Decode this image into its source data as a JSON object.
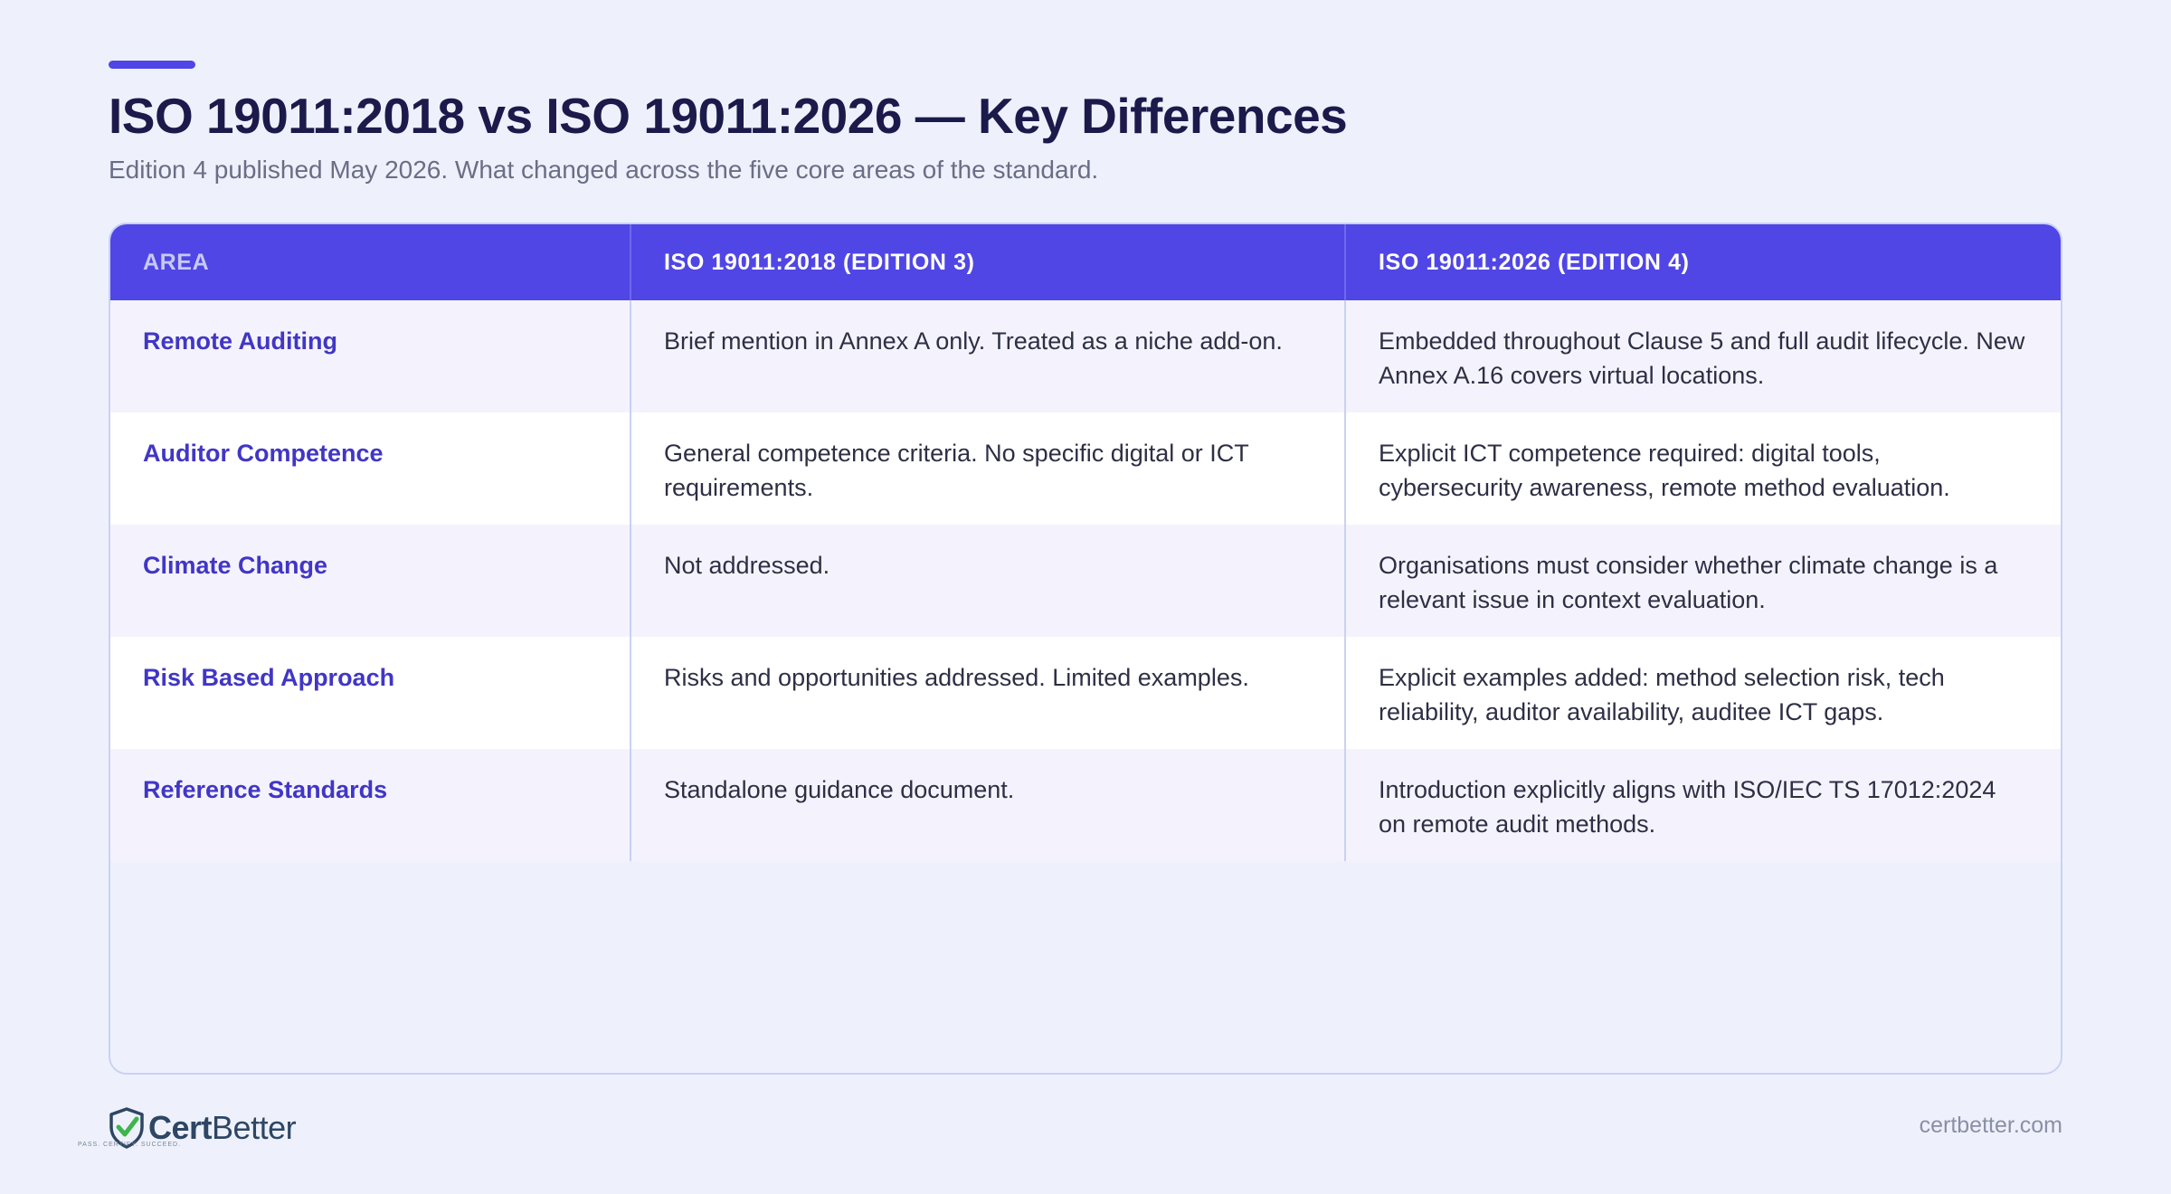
{
  "header": {
    "title": "ISO 19011:2018 vs ISO 19011:2026 — Key Differences",
    "subtitle": "Edition 4 published May 2026. What changed across the five core areas of the standard."
  },
  "table": {
    "columns": [
      "AREA",
      "ISO 19011:2018 (EDITION 3)",
      "ISO 19011:2026 (EDITION 4)"
    ],
    "rows": [
      {
        "area": "Remote Auditing",
        "edition3": "Brief mention in Annex A only. Treated as a niche add-on.",
        "edition4": "Embedded throughout Clause 5 and full audit lifecycle. New Annex A.16 covers virtual locations."
      },
      {
        "area": "Auditor Competence",
        "edition3": "General competence criteria. No specific digital or ICT requirements.",
        "edition4": "Explicit ICT competence required: digital tools, cybersecurity awareness, remote method evaluation."
      },
      {
        "area": "Climate Change",
        "edition3": "Not addressed.",
        "edition4": "Organisations must consider whether climate change is a relevant issue in context evaluation."
      },
      {
        "area": "Risk Based Approach",
        "edition3": "Risks and opportunities addressed. Limited examples.",
        "edition4": "Explicit examples added: method selection risk, tech reliability, auditor availability, auditee ICT gaps."
      },
      {
        "area": "Reference Standards",
        "edition3": "Standalone guidance document.",
        "edition4": "Introduction explicitly aligns with ISO/IEC TS 17012:2024 on remote audit methods."
      }
    ]
  },
  "footer": {
    "logo_bold": "Cert",
    "logo_light": "Better",
    "logo_tagline": "PASS. CERTIFY. SUCCEED.",
    "logo_icon": "shield-check-icon",
    "url": "certbetter.com"
  },
  "colors": {
    "accent": "#5046E5",
    "area_text": "#4136C6",
    "background": "#EEF1FC",
    "logo_green": "#3DB54A",
    "logo_navy": "#2E4663"
  }
}
